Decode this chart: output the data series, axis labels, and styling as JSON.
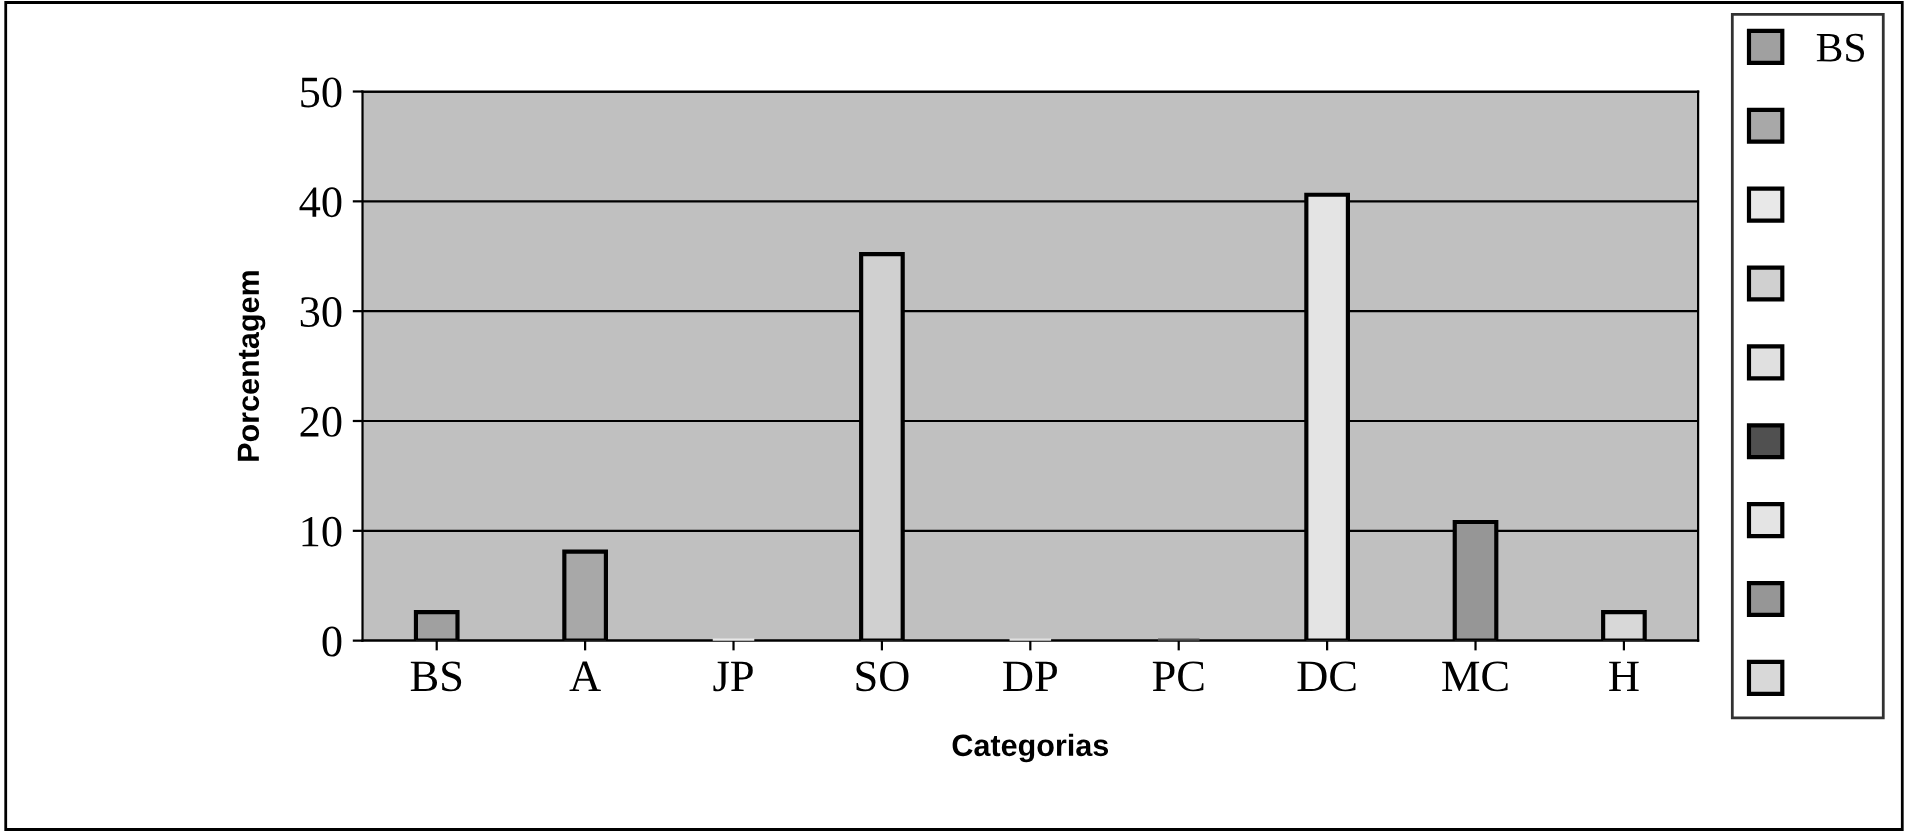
{
  "chart_data": {
    "type": "bar",
    "xlabel": "Categorias",
    "ylabel": "Porcentagem",
    "categories": [
      "BS",
      "A",
      "JP",
      "SO",
      "DP",
      "PC",
      "DC",
      "MC",
      "H"
    ],
    "series": [
      {
        "name": "BS",
        "color": "#a0a0a0",
        "values": [
          2.6,
          null,
          null,
          null,
          null,
          null,
          null,
          null,
          null
        ]
      },
      {
        "color": "#a8a8a8",
        "values": [
          null,
          8.1,
          null,
          null,
          null,
          null,
          null,
          null,
          null
        ]
      },
      {
        "color": "#e8e8e8",
        "values": [
          null,
          null,
          0,
          null,
          null,
          null,
          null,
          null,
          null
        ]
      },
      {
        "color": "#d0d0d0",
        "values": [
          null,
          null,
          null,
          35.2,
          null,
          null,
          null,
          null,
          null
        ]
      },
      {
        "color": "#e0e0e0",
        "values": [
          null,
          null,
          null,
          null,
          0,
          null,
          null,
          null,
          null
        ]
      },
      {
        "color": "#505050",
        "values": [
          null,
          null,
          null,
          null,
          null,
          0,
          null,
          null,
          null
        ]
      },
      {
        "color": "#e4e4e4",
        "values": [
          null,
          null,
          null,
          null,
          null,
          null,
          40.6,
          null,
          null
        ]
      },
      {
        "color": "#969696",
        "values": [
          null,
          null,
          null,
          null,
          null,
          null,
          null,
          10.8,
          null
        ]
      },
      {
        "color": "#d8d8d8",
        "values": [
          null,
          null,
          null,
          null,
          null,
          null,
          null,
          null,
          2.6
        ]
      }
    ],
    "ylim": [
      0,
      50
    ],
    "yticks": [
      0,
      10,
      20,
      30,
      40,
      50
    ],
    "grid": "y",
    "legend": "right"
  }
}
